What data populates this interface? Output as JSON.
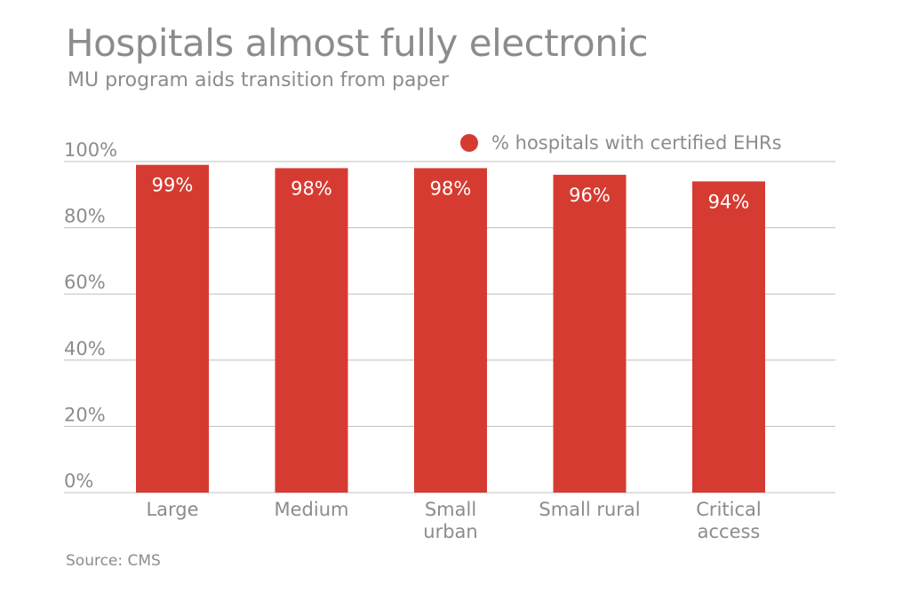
{
  "title": "Hospitals almost fully electronic",
  "subtitle": "MU program aids transition from paper",
  "source": "Source: CMS",
  "colors": {
    "bar": "#d63b31",
    "grid": "#bfbfbf",
    "text": "#8c8c8c"
  },
  "chart_data": {
    "type": "bar",
    "categories": [
      [
        "Large"
      ],
      [
        "Medium"
      ],
      [
        "Small",
        "urban"
      ],
      [
        "Small rural"
      ],
      [
        "Critical",
        "access"
      ]
    ],
    "series": [
      {
        "name": "% hospitals with certified EHRs",
        "values": [
          99,
          98,
          98,
          96,
          94
        ],
        "labels": [
          "99%",
          "98%",
          "98%",
          "96%",
          "94%"
        ]
      }
    ],
    "yticks": [
      "0%",
      "20%",
      "40%",
      "60%",
      "80%",
      "100%"
    ],
    "ylim": [
      0,
      100
    ],
    "grid": true,
    "legend": "top-right"
  }
}
